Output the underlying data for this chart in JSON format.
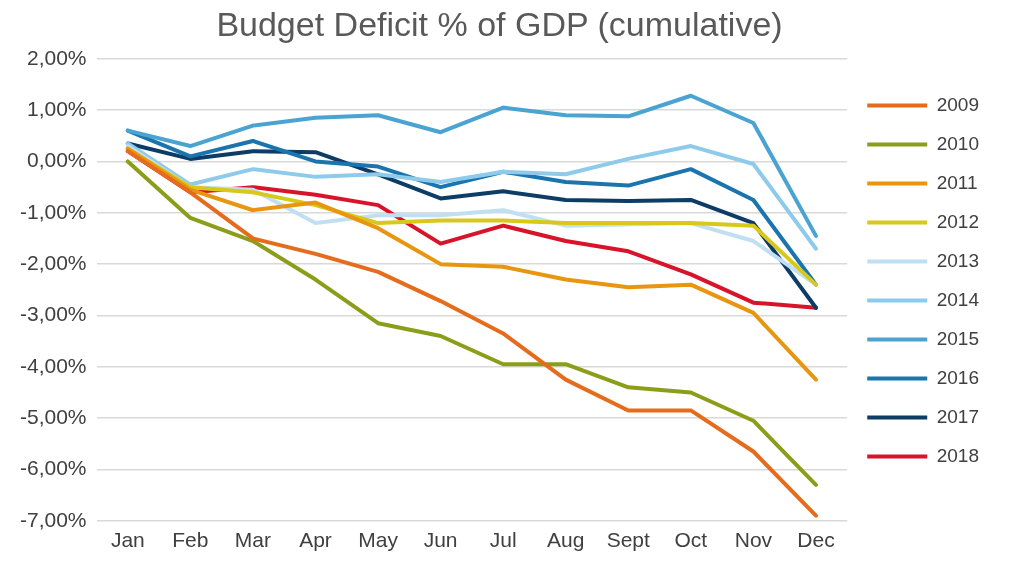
{
  "chart_data": {
    "type": "line",
    "title": "Budget Deficit % of GDP (cumulative)",
    "categories": [
      "Jan",
      "Feb",
      "Mar",
      "Apr",
      "May",
      "Jun",
      "Jul",
      "Aug",
      "Sept",
      "Oct",
      "Nov",
      "Dec"
    ],
    "series": [
      {
        "name": "2009",
        "color": "#e46c1c",
        "values": [
          0.2,
          -0.6,
          -1.5,
          -1.8,
          -2.15,
          -2.72,
          -3.35,
          -4.25,
          -4.85,
          -4.85,
          -5.65,
          -6.9
        ]
      },
      {
        "name": "2010",
        "color": "#8b9e1a",
        "values": [
          0.0,
          -1.1,
          -1.55,
          -2.3,
          -3.15,
          -3.4,
          -3.95,
          -3.95,
          -4.4,
          -4.5,
          -5.05,
          -6.3
        ]
      },
      {
        "name": "2011",
        "color": "#e8960f",
        "values": [
          0.25,
          -0.55,
          -0.95,
          -0.8,
          -1.3,
          -2.0,
          -2.05,
          -2.3,
          -2.45,
          -2.4,
          -2.95,
          -4.25
        ]
      },
      {
        "name": "2012",
        "color": "#d8c81a",
        "values": [
          0.25,
          -0.5,
          -0.6,
          -0.85,
          -1.2,
          -1.15,
          -1.15,
          -1.2,
          -1.2,
          -1.2,
          -1.25,
          -2.4
        ]
      },
      {
        "name": "2013",
        "color": "#c0dff2",
        "values": [
          0.3,
          -0.5,
          -0.55,
          -1.2,
          -1.05,
          -1.05,
          -0.95,
          -1.25,
          null,
          -1.2,
          -1.55,
          -2.4
        ]
      },
      {
        "name": "2014",
        "color": "#8ecbea",
        "values": [
          0.35,
          -0.45,
          -0.15,
          -0.3,
          -0.25,
          -0.4,
          -0.2,
          -0.25,
          0.05,
          0.3,
          -0.05,
          -1.7
        ]
      },
      {
        "name": "2015",
        "color": "#4aa3d0",
        "values": [
          0.6,
          0.3,
          0.7,
          0.85,
          0.9,
          0.57,
          1.05,
          0.9,
          0.88,
          1.28,
          0.75,
          -1.45
        ]
      },
      {
        "name": "2016",
        "color": "#1a74ad",
        "values": [
          0.6,
          0.1,
          0.4,
          0.0,
          -0.1,
          -0.5,
          -0.2,
          -0.4,
          -0.47,
          -0.15,
          -0.75,
          -2.4
        ]
      },
      {
        "name": "2017",
        "color": "#0d3d66",
        "values": [
          0.35,
          0.05,
          0.2,
          0.18,
          -0.25,
          -0.72,
          -0.58,
          -0.75,
          -0.77,
          -0.75,
          -1.2,
          -2.85
        ]
      },
      {
        "name": "2018",
        "color": "#d7142a",
        "values": [
          0.2,
          -0.6,
          -0.5,
          -0.65,
          -0.85,
          -1.6,
          -1.25,
          -1.55,
          -1.75,
          -2.2,
          -2.75,
          -2.85
        ]
      }
    ],
    "ylim": [
      -7,
      2
    ],
    "yticks": [
      {
        "value": 2,
        "label": "2,00%"
      },
      {
        "value": 1,
        "label": "1,00%"
      },
      {
        "value": 0,
        "label": "0,00%"
      },
      {
        "value": -1,
        "label": "-1,00%"
      },
      {
        "value": -2,
        "label": "-2,00%"
      },
      {
        "value": -3,
        "label": "-3,00%"
      },
      {
        "value": -4,
        "label": "-4,00%"
      },
      {
        "value": -5,
        "label": "-5,00%"
      },
      {
        "value": -6,
        "label": "-6,00%"
      },
      {
        "value": -7,
        "label": "-7,00%"
      }
    ],
    "grid": "y",
    "legend": "right",
    "marker": "none",
    "line_style": "solid"
  }
}
